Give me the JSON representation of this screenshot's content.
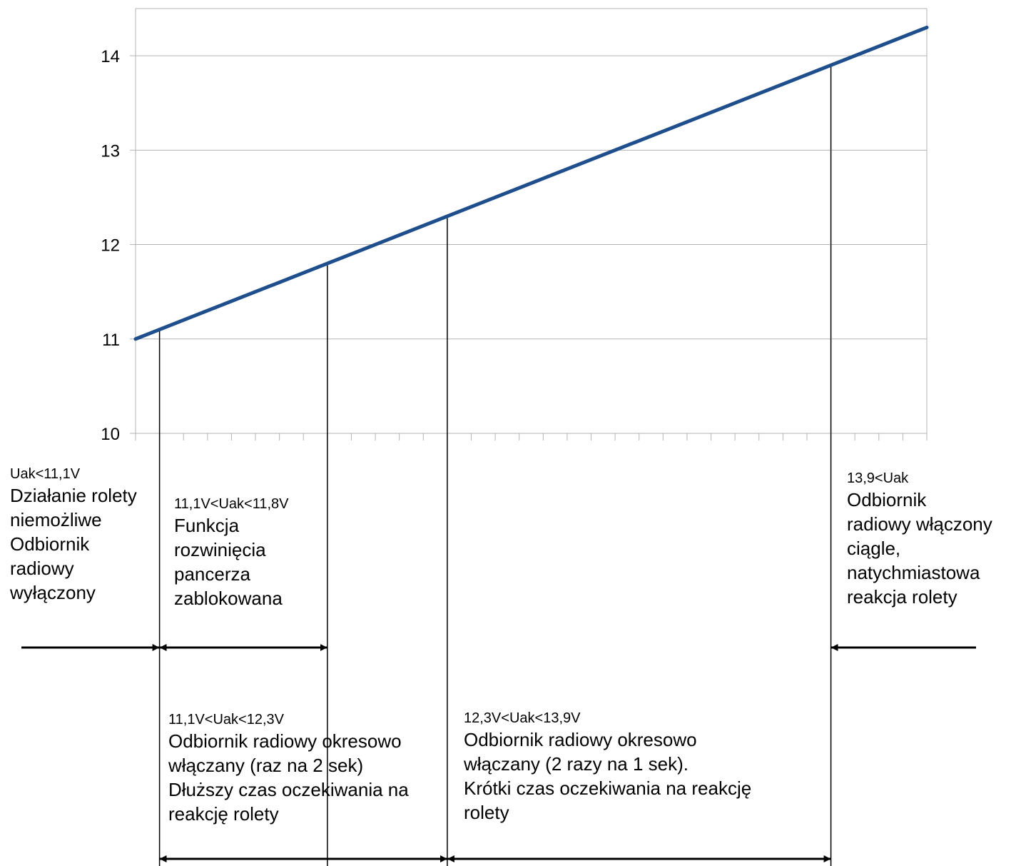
{
  "chart_data": {
    "type": "line",
    "title": "",
    "xlabel": "",
    "ylabel": "",
    "ylim": [
      10,
      14.5
    ],
    "y_ticks": [
      "10",
      "11",
      "12",
      "13",
      "14"
    ],
    "grid": "horizontal",
    "series": [
      {
        "color": "#1f4e8c",
        "x": [
          0,
          33
        ],
        "values": [
          11.0,
          14.3
        ]
      }
    ],
    "thresholds": [
      11.1,
      11.8,
      12.3,
      13.9
    ],
    "x_category_count": 33
  },
  "annotations": {
    "zone1": {
      "header": "Uak<11,1V",
      "lines": [
        "Działanie rolety",
        "niemożliwe",
        "Odbiornik",
        "radiowy",
        "wyłączony"
      ]
    },
    "zone2": {
      "header": "11,1V<Uak<11,8V",
      "lines": [
        "Funkcja",
        "rozwinięcia",
        "pancerza",
        "zablokowana"
      ]
    },
    "zone3": {
      "header": "13,9<Uak",
      "lines": [
        "Odbiornik",
        "radiowy włączony",
        "ciągle,",
        "natychmiastowa",
        "reakcja rolety"
      ]
    },
    "zone4": {
      "header": "11,1V<Uak<12,3V",
      "lines": [
        "Odbiornik radiowy okresowo",
        "włączany (raz na 2 sek)",
        "Dłuższy czas oczekiwania na",
        "reakcję rolety"
      ]
    },
    "zone5": {
      "header": "12,3V<Uak<13,9V",
      "lines": [
        "Odbiornik radiowy okresowo",
        "włączany (2 razy na 1 sek).",
        "Krótki czas oczekiwania na reakcję",
        "rolety"
      ]
    }
  }
}
